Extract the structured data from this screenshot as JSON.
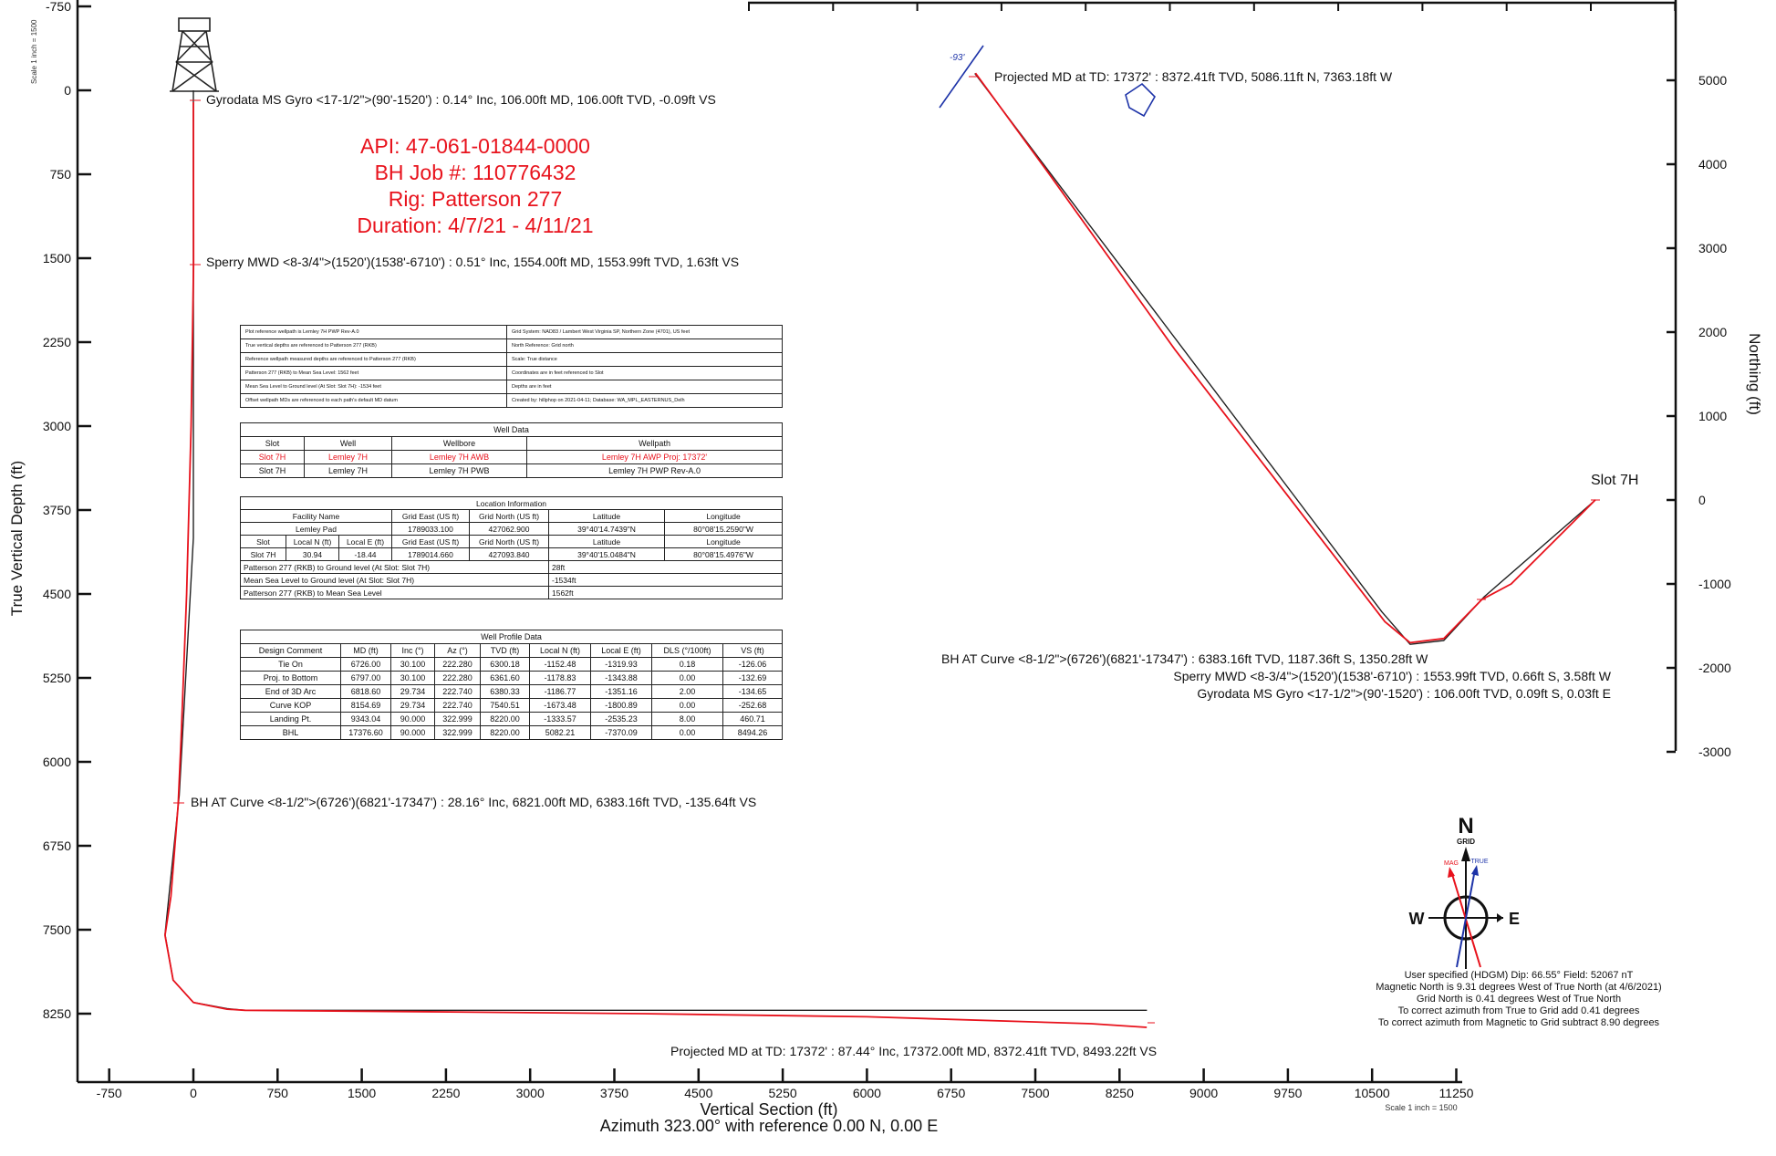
{
  "left_plot": {
    "ylabel": "True Vertical Depth (ft)",
    "xlabel": "Vertical Section (ft)",
    "xlabel2": "Azimuth 323.00° with reference 0.00 N, 0.00 E",
    "scale_note": "Scale 1 inch = 1500",
    "scale_note_bottom": "Scale 1 inch = 1500",
    "annotations": [
      "Gyrodata MS Gyro <17-1/2\">(90'-1520') : 0.14° Inc, 106.00ft MD, 106.00ft TVD, -0.09ft VS",
      "Sperry MWD <8-3/4\">(1520')(1538'-6710') : 0.51° Inc, 1554.00ft MD, 1553.99ft TVD, 1.63ft VS",
      "BH AT Curve <8-1/2\">(6726')(6821'-17347') : 28.16° Inc, 6821.00ft MD, 6383.16ft TVD, -135.64ft VS",
      "Projected MD at TD: 17372' : 87.44° Inc, 17372.00ft MD, 8372.41ft TVD, 8493.22ft VS"
    ],
    "title_block": [
      "API: 47-061-01844-0000",
      "BH Job #: 110776432",
      "Rig: Patterson 277",
      "Duration: 4/7/21 - 4/11/21"
    ]
  },
  "right_plot": {
    "ylabel": "Northing (ft)",
    "slot_label": "Slot 7H",
    "annotations": [
      "Projected MD at TD: 17372' : 8372.41ft TVD, 5086.11ft N, 7363.18ft W",
      "BH AT Curve <8-1/2\">(6726')(6821'-17347') : 6383.16ft TVD, 1187.36ft S, 1350.28ft W",
      "Sperry MWD <8-3/4\">(1520')(1538'-6710') : 1553.99ft TVD, 0.66ft S, 3.58ft W",
      "Gyrodata MS Gyro <17-1/2\">(90'-1520') : 106.00ft TVD, 0.09ft S, 0.03ft E"
    ],
    "lease_label": "-93'"
  },
  "compass": {
    "n": "N",
    "grid": "GRID",
    "w": "W",
    "e": "E",
    "mag": "MAG",
    "true": "TRUE",
    "notes": [
      "User specified (HDGM) Dip: 66.55°  Field: 52067 nT",
      "Magnetic North is 9.31 degrees West of True North (at 4/6/2021)",
      "Grid North is 0.41 degrees West of True North",
      "To correct azimuth from True to Grid add 0.41 degrees",
      "To correct azimuth from Magnetic to Grid subtract 8.90 degrees"
    ]
  },
  "notes_table": {
    "rows": [
      [
        "Plot reference wellpath is Lemley 7H PWP Rev-A.0",
        "Grid System: NAD83 / Lambert West Virginia SP, Northern Zone (4701), US feet"
      ],
      [
        "True vertical depths are referenced to Patterson 277 (RKB)",
        "North Reference: Grid north"
      ],
      [
        "Reference wellpath measured depths are referenced to Patterson 277 (RKB)",
        "Scale: True distance"
      ],
      [
        "Patterson 277 (RKB) to Mean Sea Level: 1562 feet",
        "Coordinates are in feet referenced to Slot"
      ],
      [
        "Mean Sea Level to Ground level (At Slot: Slot 7H): -1534 feet",
        "Depths are in feet"
      ],
      [
        "Offset wellpath MDs are referenced to each path's default MD datum",
        "Created by: hillphop on 2021-04-11; Database: WA_MPL_EASTERNUS_Delh"
      ]
    ]
  },
  "well_data": {
    "title": "Well Data",
    "headers": [
      "Slot",
      "Well",
      "Wellbore",
      "Wellpath"
    ],
    "rows": [
      [
        "Slot 7H",
        "Lemley 7H",
        "Lemley 7H AWB",
        "Lemley 7H AWP Proj: 17372'"
      ],
      [
        "Slot 7H",
        "Lemley 7H",
        "Lemley 7H PWB",
        "Lemley 7H PWP Rev-A.0"
      ]
    ]
  },
  "location_info": {
    "title": "Location Information",
    "h1": [
      "Facility Name",
      "Grid East (US ft)",
      "Grid North (US ft)",
      "Latitude",
      "Longitude"
    ],
    "r1": [
      "Lemley Pad",
      "1789033.100",
      "427062.900",
      "39°40'14.7439\"N",
      "80°08'15.2590\"W"
    ],
    "h2": [
      "Slot",
      "Local N (ft)",
      "Local E (ft)",
      "Grid East (US ft)",
      "Grid North (US ft)",
      "Latitude",
      "Longitude"
    ],
    "r2": [
      "Slot 7H",
      "30.94",
      "-18.44",
      "1789014.660",
      "427093.840",
      "39°40'15.0484\"N",
      "80°08'15.4976\"W"
    ],
    "extra": [
      [
        "Patterson 277 (RKB) to Ground level (At Slot: Slot 7H)",
        "28ft"
      ],
      [
        "Mean Sea Level to Ground level (At Slot: Slot 7H)",
        "-1534ft"
      ],
      [
        "Patterson 277 (RKB) to Mean Sea Level",
        "1562ft"
      ]
    ]
  },
  "well_profile": {
    "title": "Well Profile Data",
    "headers": [
      "Design Comment",
      "MD (ft)",
      "Inc (°)",
      "Az (°)",
      "TVD (ft)",
      "Local N (ft)",
      "Local E (ft)",
      "DLS (°/100ft)",
      "VS (ft)"
    ],
    "rows": [
      [
        "Tie On",
        "6726.00",
        "30.100",
        "222.280",
        "6300.18",
        "-1152.48",
        "-1319.93",
        "0.18",
        "-126.06"
      ],
      [
        "Proj. to Bottom",
        "6797.00",
        "30.100",
        "222.280",
        "6361.60",
        "-1178.83",
        "-1343.88",
        "0.00",
        "-132.69"
      ],
      [
        "End of 3D Arc",
        "6818.60",
        "29.734",
        "222.740",
        "6380.33",
        "-1186.77",
        "-1351.16",
        "2.00",
        "-134.65"
      ],
      [
        "Curve KOP",
        "8154.69",
        "29.734",
        "222.740",
        "7540.51",
        "-1673.48",
        "-1800.89",
        "0.00",
        "-252.68"
      ],
      [
        "Landing Pt.",
        "9343.04",
        "90.000",
        "322.999",
        "8220.00",
        "-1333.57",
        "-2535.23",
        "8.00",
        "460.71"
      ],
      [
        "BHL",
        "17376.60",
        "90.000",
        "322.999",
        "8220.00",
        "5082.21",
        "-7370.09",
        "0.00",
        "8494.26"
      ]
    ]
  },
  "chart_data": [
    {
      "type": "line",
      "xlabel": "Vertical Section (ft)",
      "ylabel": "True Vertical Depth (ft)",
      "xlim": [
        -1000,
        12500
      ],
      "ylim": [
        8800,
        -750
      ],
      "xticks": [
        "-750",
        "0",
        "750",
        "1500",
        "2250",
        "3000",
        "3750",
        "4500",
        "5250",
        "6000",
        "6750",
        "7500",
        "8250",
        "9000",
        "9750",
        "10500",
        "11250"
      ],
      "yticks": [
        "-750",
        "0",
        "750",
        "1500",
        "2250",
        "3000",
        "3750",
        "4500",
        "5250",
        "6000",
        "6750",
        "7500",
        "8250"
      ],
      "series": [
        {
          "name": "Lemley 7H AWP Proj: 17372'",
          "color": "#e8121c",
          "x": [
            -0.09,
            1.63,
            -20,
            -60,
            -110,
            -135.64,
            -200,
            -253,
            -180,
            0,
            300,
            460.71,
            2000,
            4000,
            6000,
            8000,
            8493.22
          ],
          "y": [
            106,
            1553.99,
            3000,
            4500,
            5800,
            6383.16,
            7200,
            7550,
            7950,
            8150,
            8210,
            8220,
            8232,
            8250,
            8278,
            8340,
            8372.41
          ]
        },
        {
          "name": "Lemley 7H PWP Rev-A.0",
          "color": "#222222",
          "x": [
            0,
            0,
            -126.06,
            -252.68,
            -180,
            0,
            300,
            460.71,
            8494.26
          ],
          "y": [
            0,
            4000,
            6300.18,
            7540.51,
            7950,
            8150,
            8205,
            8220,
            8220
          ]
        }
      ]
    },
    {
      "type": "line",
      "ylabel": "Northing (ft)",
      "xlim": [
        -8500,
        500
      ],
      "ylim": [
        -3000,
        5000
      ],
      "yticks": [
        "-3000",
        "-2000",
        "-1000",
        "0",
        "1000",
        "2000",
        "3000",
        "4000",
        "5000"
      ],
      "series": [
        {
          "name": "Lemley 7H AWP Proj: 17372'",
          "color": "#e8121c",
          "x": [
            0.03,
            -3.58,
            -300,
            -700,
            -1000,
            -1350.28,
            -1800,
            -2200,
            -2500,
            -3500,
            -5000,
            -6500,
            -7363.18
          ],
          "y": [
            -0.09,
            -0.66,
            -300,
            -700,
            -1000,
            -1187.36,
            -1650,
            -1700,
            -1450,
            -150,
            1800,
            3900,
            5086.11
          ]
        },
        {
          "name": "Lemley 7H PWP Rev-A.0",
          "color": "#222222",
          "x": [
            0,
            -1319.93,
            -1800.89,
            -2200,
            -2535.23,
            -7370.09
          ],
          "y": [
            0,
            -1152.48,
            -1673.48,
            -1720,
            -1333.57,
            5082.21
          ]
        }
      ]
    }
  ]
}
